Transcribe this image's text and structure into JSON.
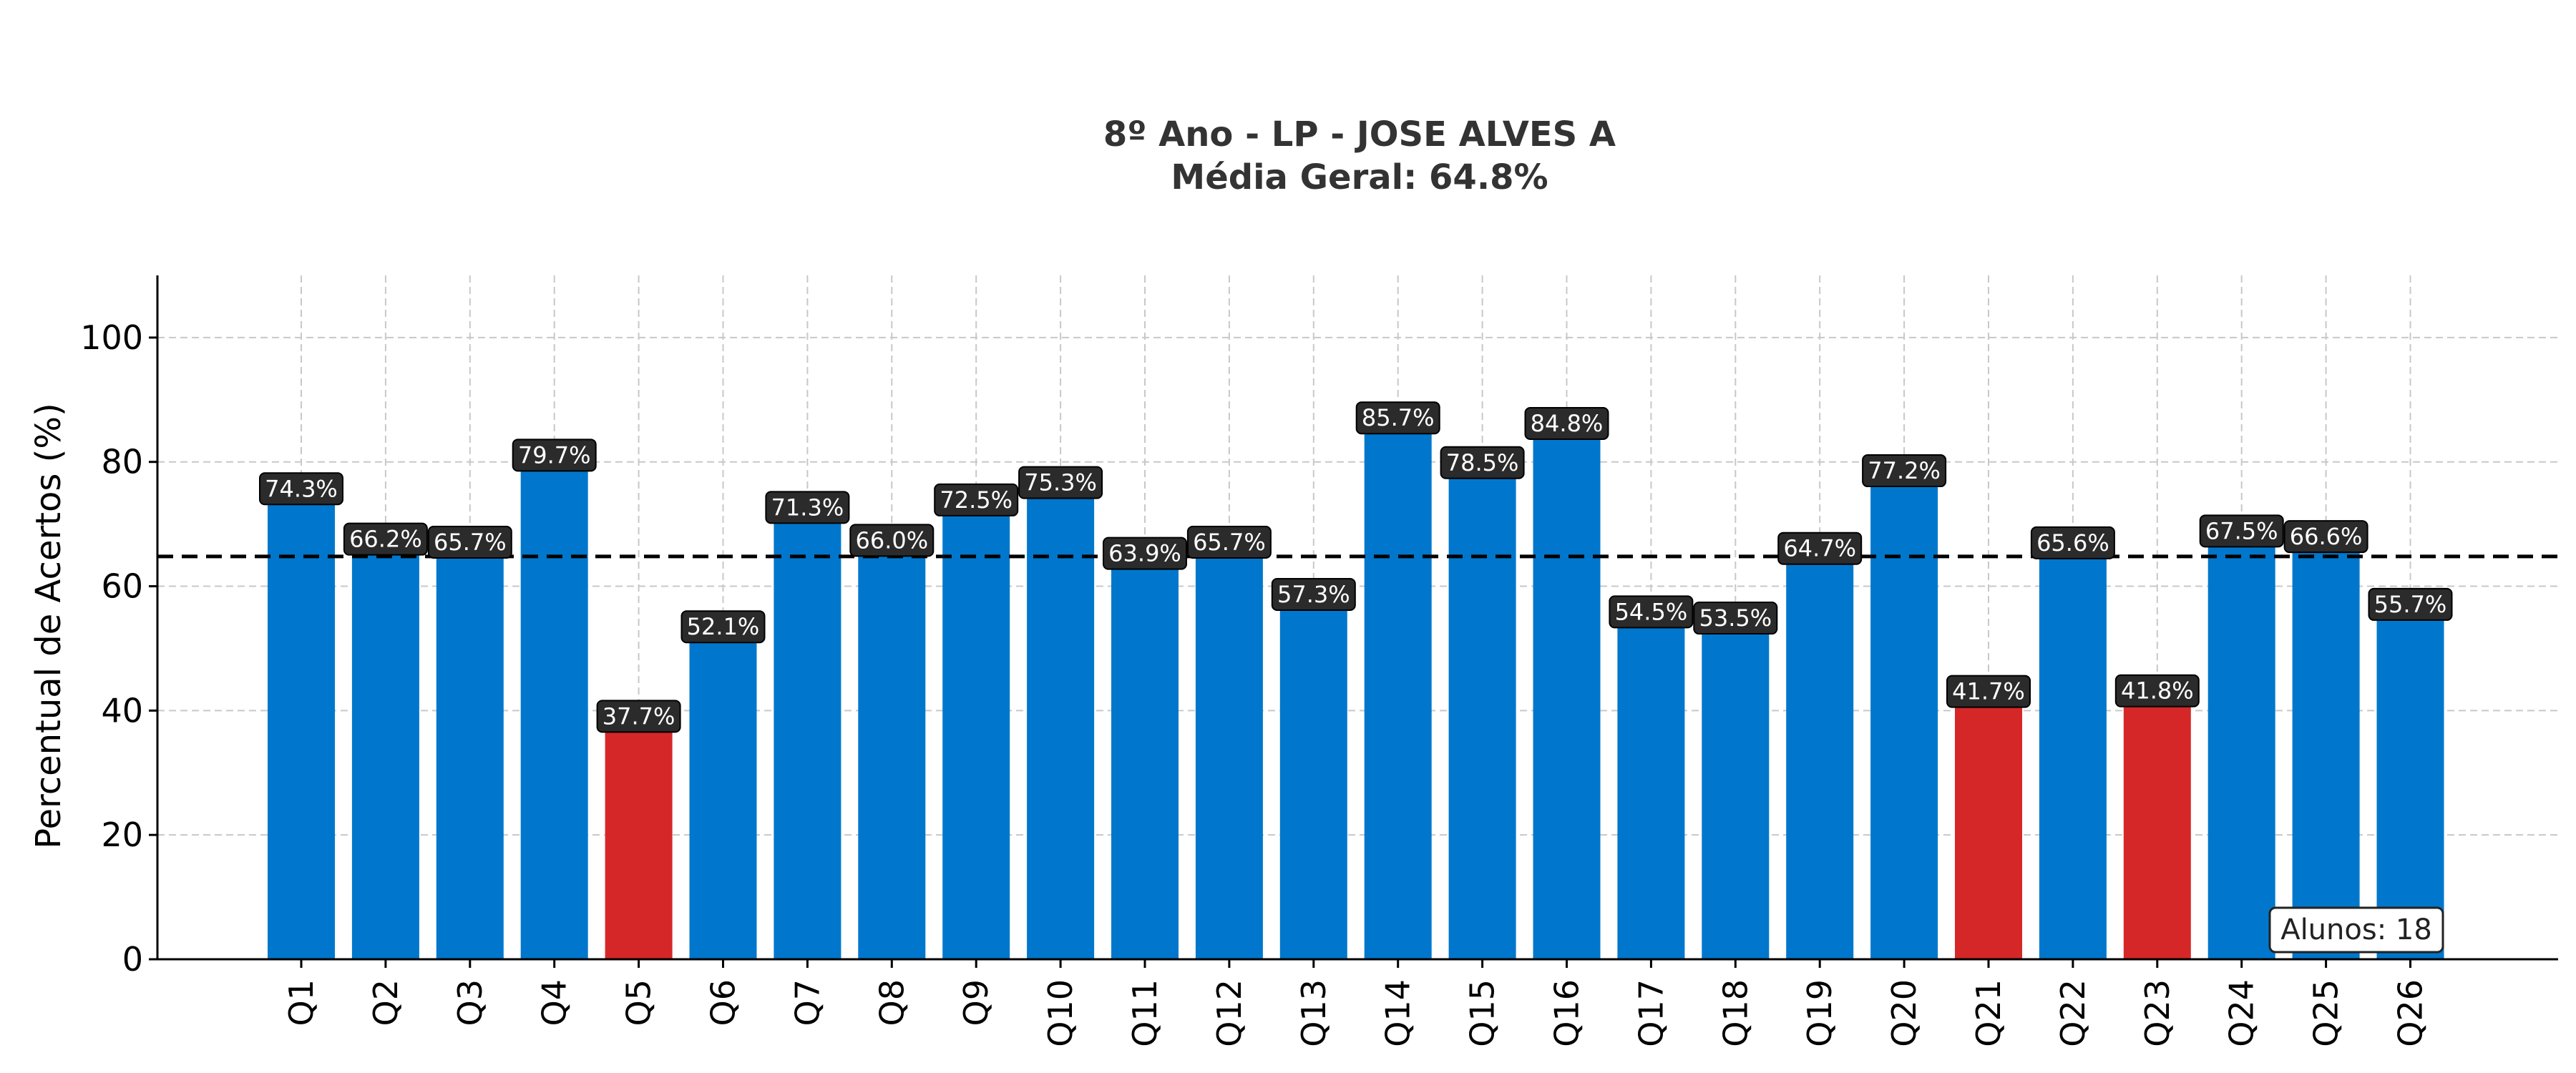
{
  "chart_data": {
    "type": "bar",
    "title": "8º Ano - LP - JOSE ALVES A",
    "subtitle": "Média Geral: 64.8%",
    "xlabel": "",
    "ylabel": "Percentual de Acertos (%)",
    "ylim": [
      0,
      110
    ],
    "yticks": [
      0,
      20,
      40,
      60,
      80,
      100
    ],
    "grid": true,
    "categories": [
      "Q1",
      "Q2",
      "Q3",
      "Q4",
      "Q5",
      "Q6",
      "Q7",
      "Q8",
      "Q9",
      "Q10",
      "Q11",
      "Q12",
      "Q13",
      "Q14",
      "Q15",
      "Q16",
      "Q17",
      "Q18",
      "Q19",
      "Q20",
      "Q21",
      "Q22",
      "Q23",
      "Q24",
      "Q25",
      "Q26"
    ],
    "values": [
      74.3,
      66.2,
      65.7,
      79.7,
      37.7,
      52.1,
      71.3,
      66.0,
      72.5,
      75.3,
      63.9,
      65.7,
      57.3,
      85.7,
      78.5,
      84.8,
      54.5,
      53.5,
      64.7,
      77.2,
      41.7,
      65.6,
      41.8,
      67.5,
      66.6,
      55.7
    ],
    "value_labels": [
      "74.3%",
      "66.2%",
      "65.7%",
      "79.7%",
      "37.7%",
      "52.1%",
      "71.3%",
      "66.0%",
      "72.5%",
      "75.3%",
      "63.9%",
      "65.7%",
      "57.3%",
      "85.7%",
      "78.5%",
      "84.8%",
      "54.5%",
      "53.5%",
      "64.7%",
      "77.2%",
      "41.7%",
      "65.6%",
      "41.8%",
      "67.5%",
      "66.6%",
      "55.7%"
    ],
    "mean_line": 64.8,
    "low_threshold": 50,
    "annotation": "Alunos: 18",
    "colors": {
      "bar": "#0077cc",
      "bar_low": "#d62728",
      "label_box": "#2b2b2b",
      "grid": "#c8c8c8",
      "mean_line": "#000000"
    }
  }
}
